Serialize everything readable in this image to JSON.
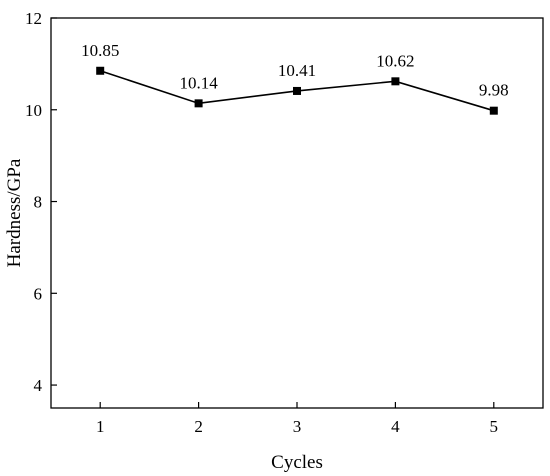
{
  "chart_data": {
    "type": "line",
    "title": "",
    "xlabel": "Cycles",
    "ylabel": "Hardness/GPa",
    "x": [
      1,
      2,
      3,
      4,
      5
    ],
    "xlim": [
      0.5,
      5.5
    ],
    "ylim": [
      3.5,
      12
    ],
    "xticks": [
      1,
      2,
      3,
      4,
      5
    ],
    "yticks": [
      4,
      6,
      8,
      10,
      12
    ],
    "grid": false,
    "series": [
      {
        "values": [
          10.85,
          10.14,
          10.41,
          10.62,
          9.98
        ],
        "labels": [
          "10.85",
          "10.14",
          "10.41",
          "10.62",
          "9.98"
        ],
        "marker": "square",
        "color": "#000000"
      }
    ]
  }
}
